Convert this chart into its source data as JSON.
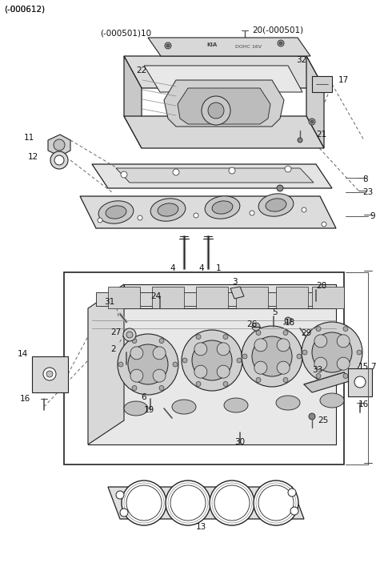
{
  "bg": "#ffffff",
  "lc": "#222222",
  "gray_light": "#e8e8e8",
  "gray_mid": "#cccccc",
  "gray_dark": "#aaaaaa"
}
